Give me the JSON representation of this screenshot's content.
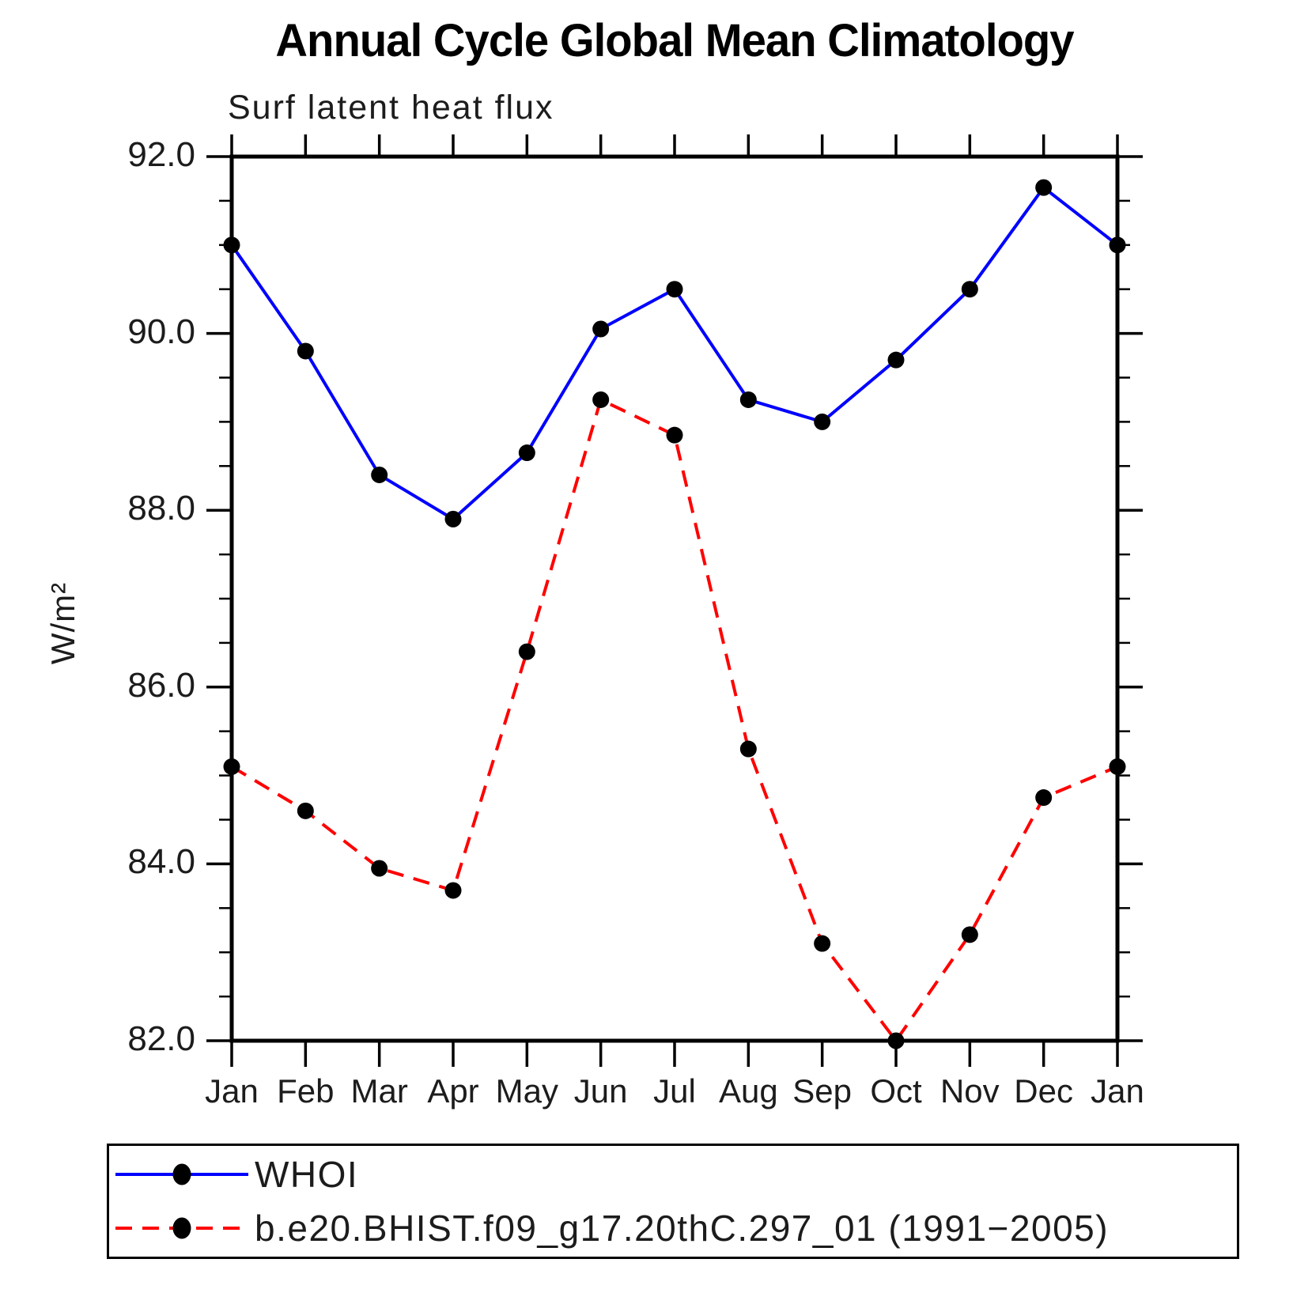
{
  "title": "Annual Cycle Global Mean Climatology",
  "subtitle": "Surf latent heat flux",
  "y_axis_label": "W/m²",
  "colors": {
    "whoi_line": "#0000ff",
    "model_line": "#ff0000",
    "marker": "#000000",
    "axis": "#000000",
    "text": "#1c1c1c"
  },
  "legend": {
    "entries": [
      {
        "label": "WHOI",
        "style": "solid",
        "color": "#0000ff"
      },
      {
        "label": "b.e20.BHIST.f09_g17.20thC.297_01 (1991−2005)",
        "style": "dashed",
        "color": "#ff0000"
      }
    ]
  },
  "chart_data": {
    "type": "line",
    "title": "Annual Cycle Global Mean Climatology",
    "subtitle": "Surf latent heat flux",
    "ylabel": "W/m²",
    "xlabel": "",
    "categories": [
      "Jan",
      "Feb",
      "Mar",
      "Apr",
      "May",
      "Jun",
      "Jul",
      "Aug",
      "Sep",
      "Oct",
      "Nov",
      "Dec",
      "Jan"
    ],
    "series": [
      {
        "name": "WHOI",
        "color": "#0000ff",
        "style": "solid",
        "marker": "filled-circle",
        "values": [
          91.0,
          89.8,
          88.4,
          87.9,
          88.65,
          90.05,
          90.5,
          89.25,
          89.0,
          89.7,
          90.5,
          91.65,
          91.0
        ]
      },
      {
        "name": "b.e20.BHIST.f09_g17.20thC.297_01 (1991−2005)",
        "color": "#ff0000",
        "style": "dashed",
        "marker": "filled-circle",
        "values": [
          85.1,
          84.6,
          83.95,
          83.7,
          86.4,
          89.25,
          88.85,
          85.3,
          83.1,
          82.0,
          83.2,
          84.75,
          85.1
        ]
      }
    ],
    "ylim": [
      82.0,
      92.0
    ],
    "ytick_major_interval": 2.0,
    "ytick_minor_interval": 0.5,
    "ytick_labels": [
      "92.0",
      "90.0",
      "88.0",
      "86.0",
      "84.0",
      "82.0"
    ],
    "grid": false,
    "legend_position": "bottom"
  }
}
